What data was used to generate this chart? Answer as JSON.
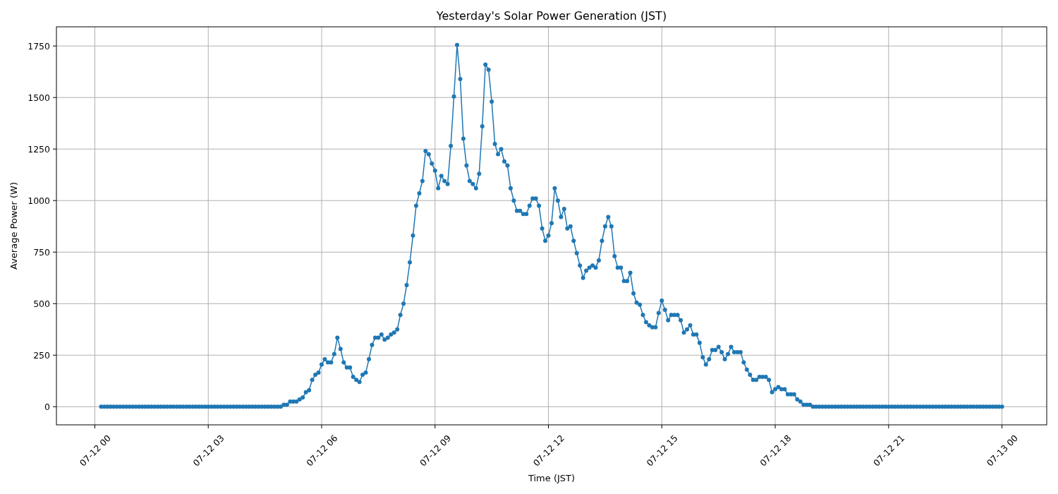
{
  "chart_data": {
    "type": "line",
    "title": "Yesterday's Solar Power Generation (JST)",
    "xlabel": "Time (JST)",
    "ylabel": "Average Power (W)",
    "x": [
      "--07-12T00:10",
      "--07-12T00:15",
      "--07-12T00:20",
      "--07-12T00:25",
      "--07-12T00:30",
      "--07-12T00:35",
      "--07-12T00:40",
      "--07-12T00:45",
      "--07-12T00:50",
      "--07-12T00:55",
      "--07-12T01:00",
      "--07-12T01:05",
      "--07-12T01:10",
      "--07-12T01:15",
      "--07-12T01:20",
      "--07-12T01:25",
      "--07-12T01:30",
      "--07-12T01:35",
      "--07-12T01:40",
      "--07-12T01:45",
      "--07-12T01:50",
      "--07-12T01:55",
      "--07-12T02:00",
      "--07-12T02:05",
      "--07-12T02:10",
      "--07-12T02:15",
      "--07-12T02:20",
      "--07-12T02:25",
      "--07-12T02:30",
      "--07-12T02:35",
      "--07-12T02:40",
      "--07-12T02:45",
      "--07-12T02:50",
      "--07-12T02:55",
      "--07-12T03:00",
      "--07-12T03:05",
      "--07-12T03:10",
      "--07-12T03:15",
      "--07-12T03:20",
      "--07-12T03:25",
      "--07-12T03:30",
      "--07-12T03:35",
      "--07-12T03:40",
      "--07-12T03:45",
      "--07-12T03:50",
      "--07-12T03:55",
      "--07-12T04:00",
      "--07-12T04:05",
      "--07-12T04:10",
      "--07-12T04:15",
      "--07-12T04:20",
      "--07-12T04:25",
      "--07-12T04:30",
      "--07-12T04:35",
      "--07-12T04:40",
      "--07-12T04:45",
      "--07-12T04:50",
      "--07-12T04:55",
      "--07-12T05:00",
      "--07-12T05:05",
      "--07-12T05:10",
      "--07-12T05:15",
      "--07-12T05:20",
      "--07-12T05:25",
      "--07-12T05:30",
      "--07-12T05:35",
      "--07-12T05:40",
      "--07-12T05:45",
      "--07-12T05:50",
      "--07-12T05:55",
      "--07-12T06:00",
      "--07-12T06:05",
      "--07-12T06:10",
      "--07-12T06:15",
      "--07-12T06:20",
      "--07-12T06:25",
      "--07-12T06:30",
      "--07-12T06:35",
      "--07-12T06:40",
      "--07-12T06:45",
      "--07-12T06:50",
      "--07-12T06:55",
      "--07-12T07:00",
      "--07-12T07:05",
      "--07-12T07:10",
      "--07-12T07:15",
      "--07-12T07:20",
      "--07-12T07:25",
      "--07-12T07:30",
      "--07-12T07:35",
      "--07-12T07:40",
      "--07-12T07:45",
      "--07-12T07:50",
      "--07-12T07:55",
      "--07-12T08:00",
      "--07-12T08:05",
      "--07-12T08:10",
      "--07-12T08:15",
      "--07-12T08:20",
      "--07-12T08:25",
      "--07-12T08:30",
      "--07-12T08:35",
      "--07-12T08:40",
      "--07-12T08:45",
      "--07-12T08:50",
      "--07-12T08:55",
      "--07-12T09:00",
      "--07-12T09:05",
      "--07-12T09:10",
      "--07-12T09:15",
      "--07-12T09:20",
      "--07-12T09:25",
      "--07-12T09:30",
      "--07-12T09:35",
      "--07-12T09:40",
      "--07-12T09:45",
      "--07-12T09:50",
      "--07-12T09:55",
      "--07-12T10:00",
      "--07-12T10:05",
      "--07-12T10:10",
      "--07-12T10:15",
      "--07-12T10:20",
      "--07-12T10:25",
      "--07-12T10:30",
      "--07-12T10:35",
      "--07-12T10:40",
      "--07-12T10:45",
      "--07-12T10:50",
      "--07-12T10:55",
      "--07-12T11:00",
      "--07-12T11:05",
      "--07-12T11:10",
      "--07-12T11:15",
      "--07-12T11:20",
      "--07-12T11:25",
      "--07-12T11:30",
      "--07-12T11:35",
      "--07-12T11:40",
      "--07-12T11:45",
      "--07-12T11:50",
      "--07-12T11:55",
      "--07-12T12:00",
      "--07-12T12:05",
      "--07-12T12:10",
      "--07-12T12:15",
      "--07-12T12:20",
      "--07-12T12:25",
      "--07-12T12:30",
      "--07-12T12:35",
      "--07-12T12:40",
      "--07-12T12:45",
      "--07-12T12:50",
      "--07-12T12:55",
      "--07-12T13:00",
      "--07-12T13:05",
      "--07-12T13:10",
      "--07-12T13:15",
      "--07-12T13:20",
      "--07-12T13:25",
      "--07-12T13:30",
      "--07-12T13:35",
      "--07-12T13:40",
      "--07-12T13:45",
      "--07-12T13:50",
      "--07-12T13:55",
      "--07-12T14:00",
      "--07-12T14:05",
      "--07-12T14:10",
      "--07-12T14:15",
      "--07-12T14:20",
      "--07-12T14:25",
      "--07-12T14:30",
      "--07-12T14:35",
      "--07-12T14:40",
      "--07-12T14:45",
      "--07-12T14:50",
      "--07-12T14:55",
      "--07-12T15:00",
      "--07-12T15:05",
      "--07-12T15:10",
      "--07-12T15:15",
      "--07-12T15:20",
      "--07-12T15:25",
      "--07-12T15:30",
      "--07-12T15:35",
      "--07-12T15:40",
      "--07-12T15:45",
      "--07-12T15:50",
      "--07-12T15:55",
      "--07-12T16:00",
      "--07-12T16:05",
      "--07-12T16:10",
      "--07-12T16:15",
      "--07-12T16:20",
      "--07-12T16:25",
      "--07-12T16:30",
      "--07-12T16:35",
      "--07-12T16:40",
      "--07-12T16:45",
      "--07-12T16:50",
      "--07-12T16:55",
      "--07-12T17:00",
      "--07-12T17:05",
      "--07-12T17:10",
      "--07-12T17:15",
      "--07-12T17:20",
      "--07-12T17:25",
      "--07-12T17:30",
      "--07-12T17:35",
      "--07-12T17:40",
      "--07-12T17:45",
      "--07-12T17:50",
      "--07-12T17:55",
      "--07-12T18:00",
      "--07-12T18:05",
      "--07-12T18:10",
      "--07-12T18:15",
      "--07-12T18:20",
      "--07-12T18:25",
      "--07-12T18:30",
      "--07-12T18:35",
      "--07-12T18:40",
      "--07-12T18:45",
      "--07-12T18:50",
      "--07-12T18:55",
      "--07-12T19:00",
      "--07-12T19:05",
      "--07-12T19:10",
      "--07-12T19:15",
      "--07-12T19:20",
      "--07-12T19:25",
      "--07-12T19:30",
      "--07-12T19:35",
      "--07-12T19:40",
      "--07-12T19:45",
      "--07-12T19:50",
      "--07-12T19:55",
      "--07-12T20:00",
      "--07-12T20:05",
      "--07-12T20:10",
      "--07-12T20:15",
      "--07-12T20:20",
      "--07-12T20:25",
      "--07-12T20:30",
      "--07-12T20:35",
      "--07-12T20:40",
      "--07-12T20:45",
      "--07-12T20:50",
      "--07-12T20:55",
      "--07-12T21:00",
      "--07-12T21:05",
      "--07-12T21:10",
      "--07-12T21:15",
      "--07-12T21:20",
      "--07-12T21:25",
      "--07-12T21:30",
      "--07-12T21:35",
      "--07-12T21:40",
      "--07-12T21:45",
      "--07-12T21:50",
      "--07-12T21:55",
      "--07-12T22:00",
      "--07-12T22:05",
      "--07-12T22:10",
      "--07-12T22:15",
      "--07-12T22:20",
      "--07-12T22:25",
      "--07-12T22:30",
      "--07-12T22:35",
      "--07-12T22:40",
      "--07-12T22:45",
      "--07-12T22:50",
      "--07-12T22:55",
      "--07-12T23:00",
      "--07-12T23:05",
      "--07-12T23:10",
      "--07-12T23:15",
      "--07-12T23:20",
      "--07-12T23:25",
      "--07-12T23:30",
      "--07-12T23:35",
      "--07-12T23:40",
      "--07-12T23:45",
      "--07-12T23:50",
      "--07-12T23:55",
      "--07-13T00:00"
    ],
    "series": [
      {
        "color": "#1f77b4",
        "values": [
          0,
          0,
          0,
          0,
          0,
          0,
          0,
          0,
          0,
          0,
          0,
          0,
          0,
          0,
          0,
          0,
          0,
          0,
          0,
          0,
          0,
          0,
          0,
          0,
          0,
          0,
          0,
          0,
          0,
          0,
          0,
          0,
          0,
          0,
          0,
          0,
          0,
          0,
          0,
          0,
          0,
          0,
          0,
          0,
          0,
          0,
          0,
          0,
          0,
          0,
          0,
          0,
          0,
          0,
          0,
          0,
          0,
          0,
          10,
          10,
          25,
          25,
          25,
          35,
          45,
          70,
          80,
          130,
          155,
          165,
          205,
          230,
          215,
          215,
          255,
          335,
          280,
          215,
          190,
          190,
          145,
          130,
          120,
          155,
          165,
          230,
          300,
          335,
          335,
          350,
          325,
          335,
          350,
          360,
          375,
          445,
          500,
          590,
          700,
          830,
          975,
          1035,
          1095,
          1240,
          1225,
          1180,
          1145,
          1060,
          1120,
          1095,
          1080,
          1265,
          1505,
          1755,
          1590,
          1300,
          1170,
          1095,
          1080,
          1060,
          1130,
          1360,
          1660,
          1635,
          1480,
          1275,
          1225,
          1250,
          1190,
          1170,
          1060,
          1000,
          950,
          950,
          935,
          935,
          975,
          1010,
          1010,
          975,
          865,
          805,
          830,
          890,
          1060,
          1000,
          920,
          960,
          865,
          875,
          805,
          745,
          685,
          625,
          660,
          675,
          685,
          675,
          710,
          805,
          875,
          920,
          875,
          730,
          675,
          675,
          610,
          610,
          650,
          550,
          505,
          495,
          445,
          410,
          395,
          385,
          385,
          455,
          515,
          470,
          420,
          445,
          445,
          445,
          420,
          360,
          375,
          395,
          350,
          350,
          310,
          240,
          205,
          230,
          275,
          275,
          290,
          265,
          230,
          255,
          290,
          265,
          265,
          265,
          215,
          180,
          155,
          130,
          130,
          145,
          145,
          145,
          130,
          70,
          85,
          95,
          85,
          85,
          60,
          60,
          60,
          35,
          25,
          10,
          10,
          10,
          0,
          0,
          0,
          0,
          0,
          0,
          0,
          0,
          0,
          0,
          0,
          0,
          0,
          0,
          0,
          0,
          0,
          0,
          0,
          0,
          0,
          0,
          0,
          0,
          0,
          0,
          0,
          0,
          0,
          0,
          0,
          0,
          0,
          0,
          0,
          0,
          0,
          0,
          0,
          0,
          0,
          0,
          0,
          0,
          0,
          0,
          0,
          0,
          0,
          0,
          0,
          0,
          0,
          0,
          0,
          0,
          0,
          0,
          0,
          0,
          0
        ]
      }
    ],
    "xlim": [
      "--07-11T22:59",
      "--07-13T01:11"
    ],
    "ylim": [
      -88,
      1843
    ],
    "xticks": [
      {
        "value": "--07-12T00:00",
        "label": "07-12 00"
      },
      {
        "value": "--07-12T03:00",
        "label": "07-12 03"
      },
      {
        "value": "--07-12T06:00",
        "label": "07-12 06"
      },
      {
        "value": "--07-12T09:00",
        "label": "07-12 09"
      },
      {
        "value": "--07-12T12:00",
        "label": "07-12 12"
      },
      {
        "value": "--07-12T15:00",
        "label": "07-12 15"
      },
      {
        "value": "--07-12T18:00",
        "label": "07-12 18"
      },
      {
        "value": "--07-12T21:00",
        "label": "07-12 21"
      },
      {
        "value": "--07-13T00:00",
        "label": "07-13 00"
      }
    ],
    "yticks": [
      0,
      250,
      500,
      750,
      1000,
      1250,
      1500,
      1750
    ],
    "grid": true,
    "marker": "circle",
    "line_style": "solid"
  }
}
